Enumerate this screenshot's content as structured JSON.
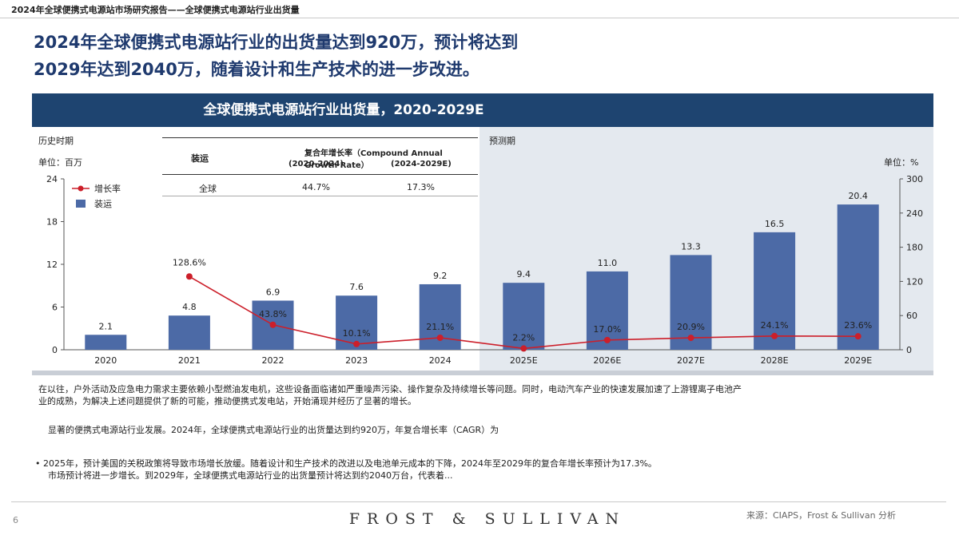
{
  "header": {
    "breadcrumb": "2024年全球便携式电源站市场研究报告——全球便携式电源站行业出货量"
  },
  "headline": {
    "line1": "2024年全球便携式电源站行业的出货量达到920万，预计将达到",
    "line2": "2029年达到2040万，随着设计和生产技术的进一步改进。"
  },
  "panel": {
    "title": "全球便携式电源站行业出货量，2020-2029E"
  },
  "labels": {
    "historical": "历史时期",
    "unit_left": "单位：百万",
    "forecast": "预测期",
    "unit_right": "单位：%"
  },
  "cagr_table": {
    "col_segment": "装运",
    "col_header": "复合年增长率（Compound Annual Growth Rate）",
    "period1": "(2020-2024)",
    "period2": "(2024-2029E)",
    "row_label": "全球",
    "value1": "44.7%",
    "value2": "17.3%"
  },
  "chart_data": {
    "type": "bar",
    "categories": [
      "2020",
      "2021",
      "2022",
      "2023",
      "2024",
      "2025E",
      "2026E",
      "2027E",
      "2028E",
      "2029E"
    ],
    "series": [
      {
        "name": "装运",
        "type": "bar",
        "axis": "left",
        "color": "#4c6aa6",
        "values": [
          2.1,
          4.8,
          6.9,
          7.6,
          9.2,
          9.4,
          11.0,
          13.3,
          16.5,
          20.4
        ],
        "labels": [
          "2.1",
          "4.8",
          "6.9",
          "7.6",
          "9.2",
          "9.4",
          "11.0",
          "13.3",
          "16.5",
          "20.4"
        ]
      },
      {
        "name": "增长率",
        "type": "line",
        "axis": "right",
        "color": "#cc1f2a",
        "values": [
          null,
          128.6,
          43.8,
          10.1,
          21.1,
          2.2,
          17.0,
          20.9,
          24.1,
          23.6
        ],
        "labels": [
          "",
          "128.6%",
          "43.8%",
          "10.1%",
          "21.1%",
          "2.2%",
          "17.0%",
          "20.9%",
          "24.1%",
          "23.6%"
        ]
      }
    ],
    "y_left": {
      "ylim": [
        0,
        24
      ],
      "ticks": [
        "0",
        "6",
        "12",
        "18",
        "24"
      ]
    },
    "y_right": {
      "ylim": [
        0,
        300
      ],
      "ticks": [
        "0",
        "60",
        "120",
        "180",
        "240",
        "300"
      ]
    },
    "legend": [
      "增长率",
      "装运"
    ],
    "legend_position": "top-left",
    "forecast_start": "2025E"
  },
  "body": {
    "para1_line1": "在以往，户外活动及应急电力需求主要依赖小型燃油发电机，这些设备面临诸如严重噪声污染、操作复杂及持续增长等问题。同时，电动汽车产业的快速发展加速了上游锂离子电池产",
    "para1_line2": "业的成熟，为解决上述问题提供了新的可能，推动便携式发电站，开始涌现并经历了显著的增长。",
    "para2": "显著的便携式电源站行业发展。2024年，全球便携式电源站行业的出货量达到约920万，年复合增长率（CAGR）为",
    "para3_line1": "• 2025年，预计美国的关税政策将导致市场增长放缓。随着设计和生产技术的改进以及电池单元成本的下降，2024年至2029年的复合年增长率预计为17.3%。",
    "para3_line2": "市场预计将进一步增长。到2029年，全球便携式电源站行业的出货量预计将达到约2040万台，代表着..."
  },
  "footer": {
    "page_number": "6",
    "brand": "FROST & SULLIVAN",
    "source": "来源：CIAPS，Frost & Sullivan 分析"
  },
  "colors": {
    "brand_navy": "#1e4470",
    "bar": "#4c6aa6",
    "line": "#cc1f2a",
    "forecast_bg": "#e4e9ef",
    "headline": "#1f3a6e"
  }
}
